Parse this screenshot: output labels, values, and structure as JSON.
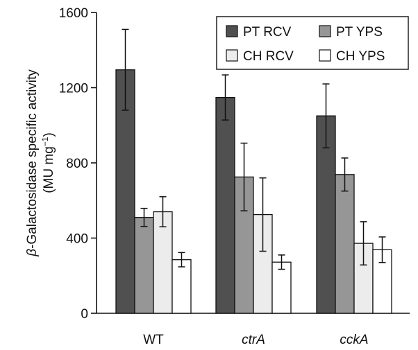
{
  "chart_data": {
    "type": "bar",
    "title": "",
    "xlabel": "",
    "ylabel_prefix": "β",
    "ylabel_main": "-Galactosidase specific activity",
    "ylabel_unit_base": "(MU mg",
    "ylabel_unit_sup": "−1",
    "ylabel_unit_close": ")",
    "ylim": [
      0,
      1600
    ],
    "yticks": [
      0,
      400,
      800,
      1200,
      1600
    ],
    "grid": false,
    "legend_position": "top-right",
    "categories": [
      "WT",
      "ctrA",
      "cckA"
    ],
    "category_italic": [
      false,
      true,
      true
    ],
    "series": [
      {
        "name": "PT RCV",
        "color": "#505050",
        "values": [
          1295,
          1148,
          1050
        ],
        "errors": [
          215,
          120,
          170
        ]
      },
      {
        "name": "PT YPS",
        "color": "#969696",
        "values": [
          510,
          725,
          738
        ],
        "errors": [
          48,
          180,
          88
        ]
      },
      {
        "name": "CH RCV",
        "color": "#ececec",
        "values": [
          540,
          525,
          372
        ],
        "errors": [
          80,
          195,
          115
        ]
      },
      {
        "name": "CH YPS",
        "color": "#ffffff",
        "values": [
          285,
          272,
          338
        ],
        "errors": [
          38,
          38,
          68
        ]
      }
    ]
  }
}
